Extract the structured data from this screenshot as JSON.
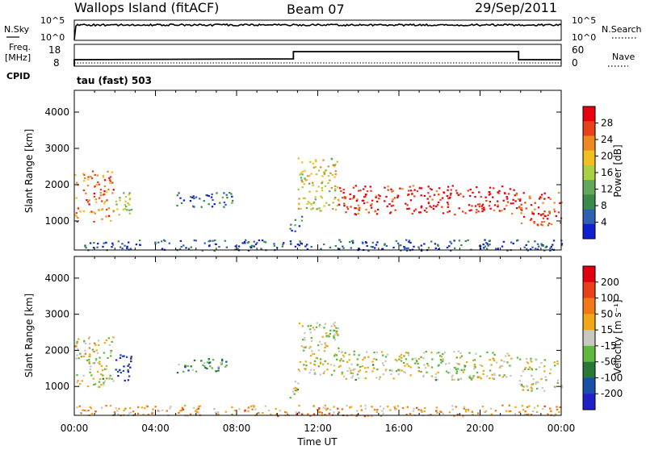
{
  "header": {
    "station": "Wallops Island (fitACF)",
    "beam": "Beam 07",
    "date": "29/Sep/2011"
  },
  "top_panels": {
    "nsky_label": "N.Sky",
    "nsearch_label": "N.Search",
    "nsky_ticks": [
      "10^5",
      "10^0"
    ],
    "nsearch_ticks": [
      "10^5",
      "10^0"
    ],
    "freq_label": "Freq.",
    "freq_unit": "[MHz]",
    "freq_ticks": [
      "18",
      "8"
    ],
    "nave_label": "Nave",
    "nave_ticks": [
      "60",
      "0"
    ],
    "cpid_label": "CPID",
    "cpid_text": "tau (fast) 503"
  },
  "colors": {
    "power": [
      "#1020d0",
      "#3060b0",
      "#3a8a4a",
      "#62a85a",
      "#a8d040",
      "#f0c020",
      "#f08820",
      "#e84018",
      "#e80010"
    ],
    "velocity": [
      "#2020c8",
      "#1850a8",
      "#2a7838",
      "#60b840",
      "#c8c8be",
      "#f0a818",
      "#f07818",
      "#e84018",
      "#e00010"
    ]
  },
  "chart_data": [
    {
      "type": "heatmap",
      "quantity": "Power",
      "ylabel": "Slant Range [km]",
      "yticks": [
        "1000",
        "2000",
        "3000",
        "4000"
      ],
      "xticks": [
        "00:00",
        "04:00",
        "08:00",
        "12:00",
        "16:00",
        "20:00",
        "00:00"
      ],
      "ylim": [
        200,
        4600
      ],
      "xlim": [
        0,
        24
      ],
      "colorbar_label": "Power [dB]",
      "colorbar_ticks": [
        "28",
        "24",
        "20",
        "16",
        "12",
        "8",
        "4"
      ],
      "regions": [
        {
          "t": [
            0.0,
            1.9
          ],
          "r": [
            1000,
            2400
          ],
          "level": 0.75
        },
        {
          "t": [
            2.0,
            2.8
          ],
          "r": [
            1100,
            1900
          ],
          "level": 0.5
        },
        {
          "t": [
            5.0,
            7.8
          ],
          "r": [
            1400,
            1800
          ],
          "level": 0.2
        },
        {
          "t": [
            10.6,
            11.2
          ],
          "r": [
            700,
            1200
          ],
          "level": 0.25
        },
        {
          "t": [
            11.0,
            13.0
          ],
          "r": [
            1300,
            2800
          ],
          "level": 0.55
        },
        {
          "t": [
            13.0,
            21.8
          ],
          "r": [
            1200,
            2000
          ],
          "level": 0.9
        },
        {
          "t": [
            21.8,
            24.0
          ],
          "r": [
            900,
            1800
          ],
          "level": 0.85
        },
        {
          "t": [
            0.0,
            24.0
          ],
          "r": [
            200,
            500
          ],
          "level": 0.15
        }
      ]
    },
    {
      "type": "heatmap",
      "quantity": "Velocity",
      "ylabel": "Slant Range [km]",
      "yticks": [
        "1000",
        "2000",
        "3000",
        "4000"
      ],
      "xticks": [
        "00:00",
        "04:00",
        "08:00",
        "12:00",
        "16:00",
        "20:00",
        "00:00"
      ],
      "ylim": [
        200,
        4600
      ],
      "xlim": [
        0,
        24
      ],
      "xlabel": "Time UT",
      "colorbar_label": "Velocity [m s⁻¹]",
      "colorbar_ticks": [
        "200",
        "100",
        "50",
        "15",
        "-15",
        "-50",
        "-100",
        "-200"
      ],
      "regions": [
        {
          "t": [
            0.0,
            1.9
          ],
          "r": [
            1000,
            2400
          ],
          "level": 0.5
        },
        {
          "t": [
            2.0,
            2.8
          ],
          "r": [
            1100,
            1900
          ],
          "level": 0.1
        },
        {
          "t": [
            5.0,
            7.8
          ],
          "r": [
            1400,
            1800
          ],
          "level": 0.35
        },
        {
          "t": [
            10.6,
            11.2
          ],
          "r": [
            700,
            1200
          ],
          "level": 0.5
        },
        {
          "t": [
            11.0,
            13.0
          ],
          "r": [
            1300,
            2800
          ],
          "level": 0.5
        },
        {
          "t": [
            13.0,
            21.8
          ],
          "r": [
            1200,
            2000
          ],
          "level": 0.5
        },
        {
          "t": [
            21.8,
            24.0
          ],
          "r": [
            900,
            1800
          ],
          "level": 0.5
        },
        {
          "t": [
            0.0,
            24.0
          ],
          "r": [
            200,
            500
          ],
          "level": 0.65
        }
      ]
    }
  ]
}
